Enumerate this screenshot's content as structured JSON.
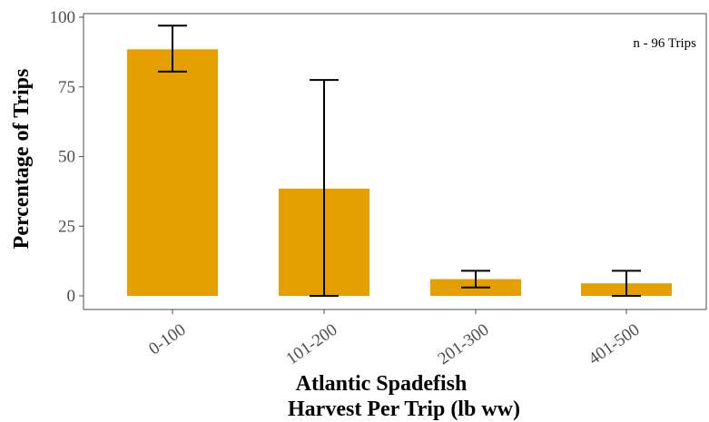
{
  "chart_data": {
    "type": "bar",
    "categories": [
      "0-100",
      "101-200",
      "201-300",
      "401-500"
    ],
    "values": [
      88.5,
      38.5,
      6,
      4.5
    ],
    "error_bars": [
      {
        "low": 80.5,
        "high": 97
      },
      {
        "low": 0,
        "high": 77.5
      },
      {
        "low": 3,
        "high": 9
      },
      {
        "low": 0,
        "high": 9
      }
    ],
    "title": "",
    "xlabel_lines": [
      "Atlantic Spadefish",
      "Harvest Per Trip (lb ww)"
    ],
    "ylabel": "Percentage of Trips",
    "ylim": [
      0,
      100
    ],
    "yticks": [
      0,
      25,
      50,
      75,
      100
    ],
    "annotation": "n - 96 Trips",
    "grid": false,
    "legend": "none",
    "bar_color": "#E69F00",
    "error_bar_color": "#000000",
    "axis_color": "#4d4d4d"
  }
}
